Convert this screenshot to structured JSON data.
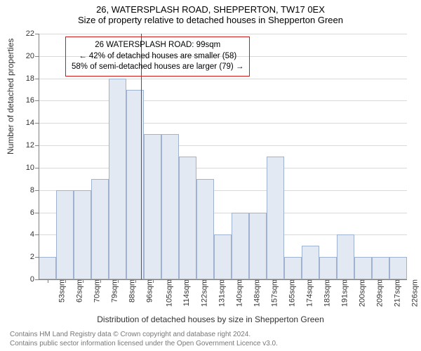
{
  "title_line1": "26, WATERSPLASH ROAD, SHEPPERTON, TW17 0EX",
  "title_line2": "Size of property relative to detached houses in Shepperton Green",
  "ylabel": "Number of detached properties",
  "xlabel": "Distribution of detached houses by size in Shepperton Green",
  "footer_line1": "Contains HM Land Registry data © Crown copyright and database right 2024.",
  "footer_line2": "Contains public sector information licensed under the Open Government Licence v3.0.",
  "chart": {
    "type": "histogram",
    "ylim": [
      0,
      22
    ],
    "ytick_step": 2,
    "background_color": "#ffffff",
    "grid_color": "#d9d9d9",
    "axis_color": "#808080",
    "bar_fill": "#e2e9f3",
    "bar_border": "#9fb2cf",
    "bar_border_width": 1,
    "reference_line_color": "#d11a1a",
    "reference_line_x_index": 5.35,
    "annotation_border": "#d11a1a",
    "annotation_lines": [
      "26 WATERSPLASH ROAD: 99sqm",
      "← 42% of detached houses are smaller (58)",
      "58% of semi-detached houses are larger (79) →"
    ],
    "x_labels": [
      "53sqm",
      "62sqm",
      "70sqm",
      "79sqm",
      "88sqm",
      "96sqm",
      "105sqm",
      "114sqm",
      "122sqm",
      "131sqm",
      "140sqm",
      "148sqm",
      "157sqm",
      "165sqm",
      "174sqm",
      "183sqm",
      "191sqm",
      "200sqm",
      "209sqm",
      "217sqm",
      "226sqm"
    ],
    "values": [
      2,
      8,
      8,
      9,
      18,
      17,
      13,
      13,
      11,
      9,
      4,
      6,
      6,
      11,
      2,
      3,
      2,
      4,
      2,
      2,
      2
    ]
  }
}
